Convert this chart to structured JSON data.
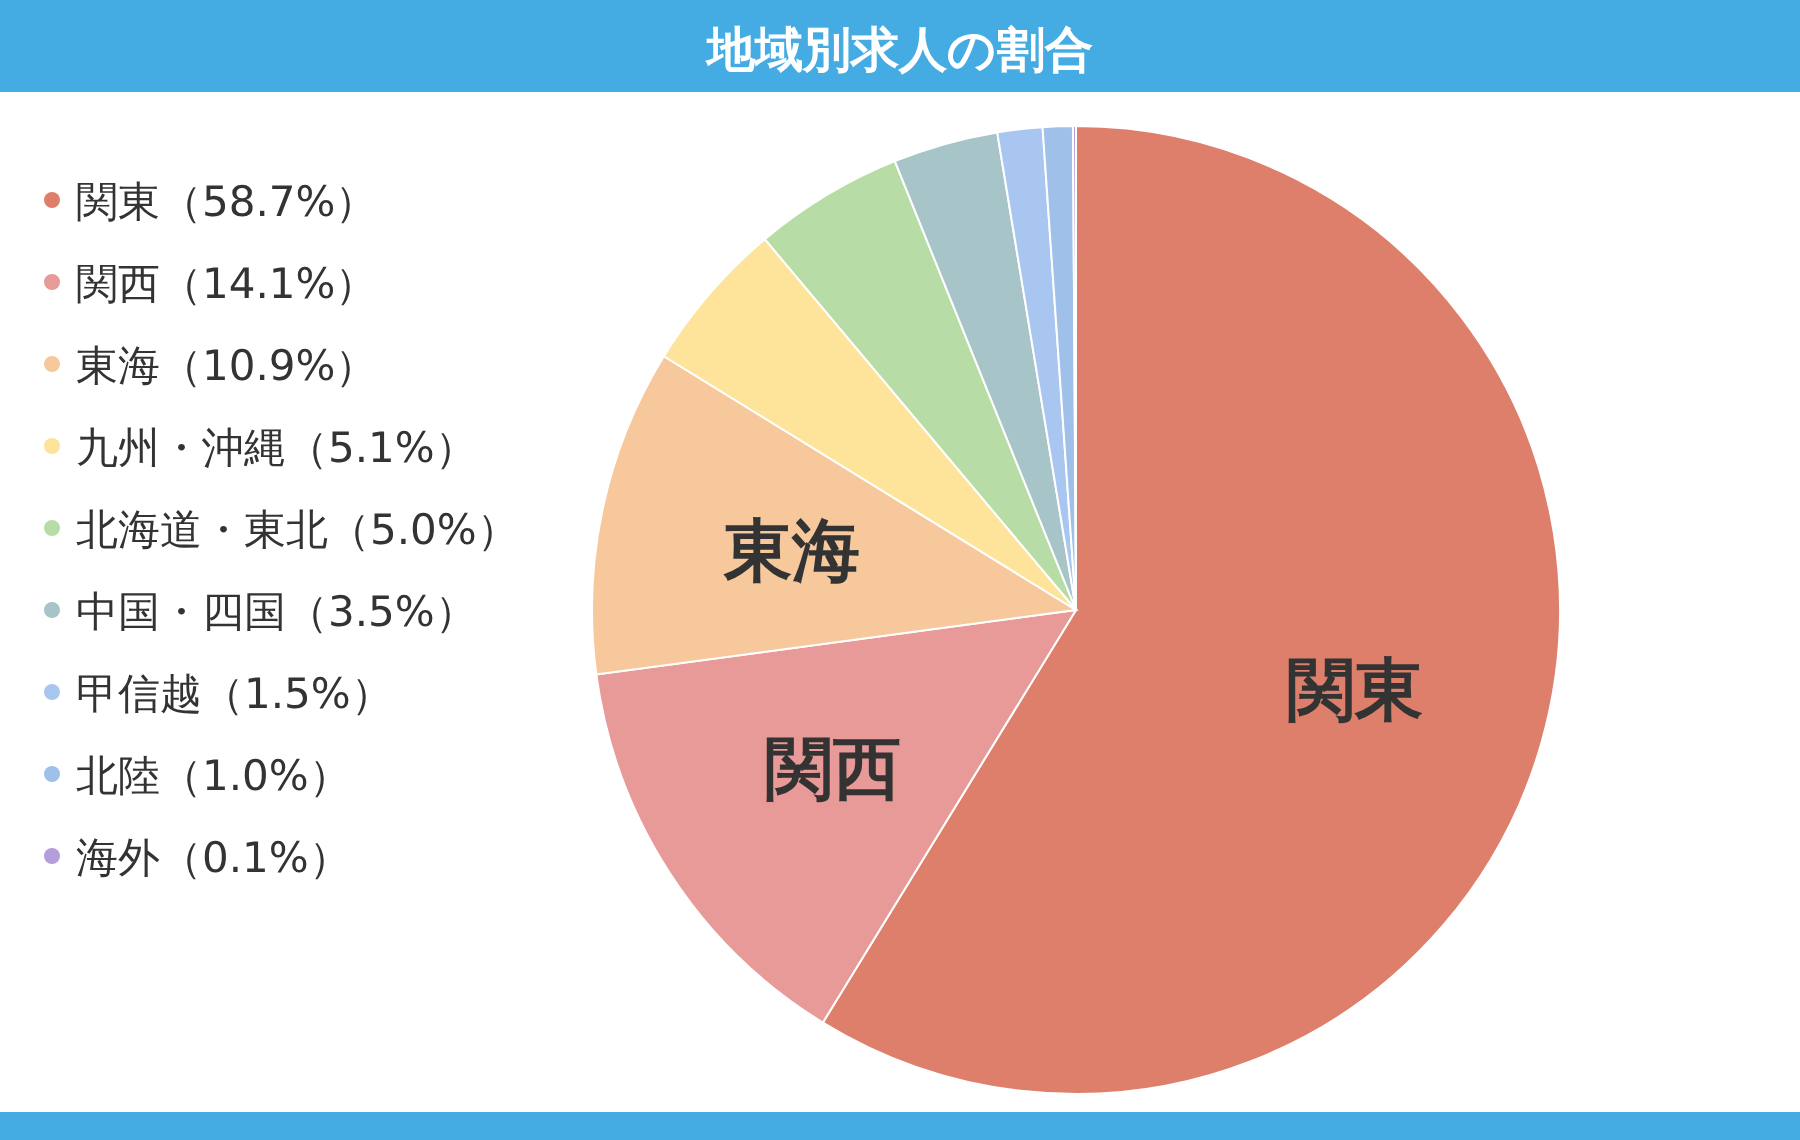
{
  "chart_data": {
    "type": "pie",
    "title": "地域別求人の割合",
    "categories": [
      "関東（58.7%）",
      "関西（14.1%）",
      "東海（10.9%）",
      "九州・沖縄（5.1%）",
      "北海道・東北（5.0%）",
      "中国・四国（3.5%）",
      "甲信越（1.5%）",
      "北陸（1.0%）",
      "海外（0.1%）"
    ],
    "values": [
      58.7,
      14.1,
      10.9,
      5.1,
      5.0,
      3.5,
      1.5,
      1.0,
      0.1
    ],
    "colors": [
      "#dd7f6b",
      "#e89a98",
      "#f7c89b",
      "#fde49a",
      "#b7dca6",
      "#a7c4c8",
      "#a9c6f0",
      "#9fc0e8",
      "#b39ddb"
    ],
    "legend": "left",
    "annotations": [
      {
        "text": "関東",
        "x": "関東（58.7%）"
      },
      {
        "text": "関西",
        "x": "関西（14.1%）"
      },
      {
        "text": "東海",
        "x": "東海（10.9%）"
      }
    ]
  }
}
